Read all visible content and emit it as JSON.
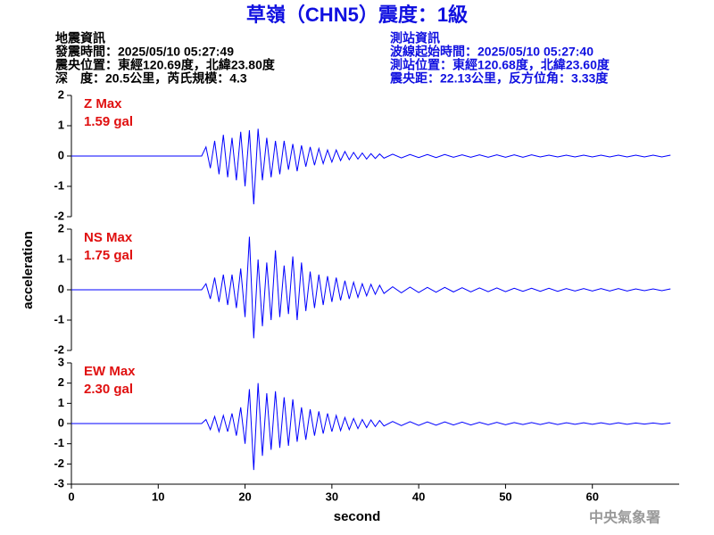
{
  "title": "草嶺（CHN5）震度：1級",
  "event_info": [
    "地震資訊",
    "發震時間：2025/05/10 05:27:49",
    "震央位置：東經120.69度，北緯23.80度",
    "深　度：20.5公里，芮氏規模：4.3"
  ],
  "station_info": [
    "測站資訊",
    "波線起始時間：2025/05/10 05:27:40",
    "測站位置：東經120.68度，北緯23.60度",
    "震央距：22.13公里，反方位角：3.33度"
  ],
  "y_label": "acceleration",
  "x_label": "second",
  "agency": "中央氣象署",
  "chart_data": [
    {
      "type": "line",
      "label": "Z Max",
      "max_label": "1.59 gal",
      "color": "#0000ff",
      "xlim": [
        0,
        70
      ],
      "ylim": [
        -2,
        2
      ],
      "yticks": [
        2,
        1,
        0,
        -1,
        -2
      ],
      "x": [
        0,
        15,
        15.5,
        16,
        16.5,
        17,
        17.5,
        18,
        18.5,
        19,
        19.5,
        20,
        20.5,
        21,
        21.5,
        22,
        22.5,
        23,
        23.5,
        24,
        24.5,
        25,
        25.5,
        26,
        26.5,
        27,
        27.5,
        28,
        28.5,
        29,
        29.5,
        30,
        30.5,
        31,
        31.5,
        32,
        32.5,
        33,
        33.5,
        34,
        34.5,
        35,
        35.5,
        36,
        37,
        38,
        39,
        40,
        41,
        42,
        43,
        44,
        45,
        46,
        47,
        48,
        49,
        50,
        51,
        52,
        53,
        54,
        55,
        56,
        57,
        58,
        59,
        60,
        61,
        62,
        63,
        64,
        65,
        66,
        67,
        68,
        69
      ],
      "values": [
        0,
        0,
        0.3,
        -0.4,
        0.5,
        -0.6,
        0.7,
        -0.7,
        0.6,
        -0.8,
        0.8,
        -1.0,
        0.85,
        -1.59,
        0.9,
        -0.8,
        0.6,
        -0.7,
        0.5,
        -0.6,
        0.5,
        -0.45,
        0.4,
        -0.5,
        0.35,
        -0.35,
        0.3,
        -0.3,
        0.25,
        -0.25,
        0.2,
        -0.2,
        0.2,
        -0.15,
        0.15,
        -0.12,
        0.12,
        -0.1,
        0.1,
        -0.1,
        0.08,
        -0.08,
        0.07,
        -0.07,
        0.06,
        -0.06,
        0.05,
        -0.05,
        0.05,
        -0.05,
        0.05,
        -0.04,
        0.04,
        -0.04,
        0.04,
        -0.04,
        0.04,
        -0.04,
        0.04,
        -0.04,
        0.04,
        -0.03,
        0.03,
        -0.03,
        0.03,
        -0.03,
        0.03,
        -0.03,
        0.03,
        -0.03,
        0.03,
        -0.03,
        0.03,
        -0.03,
        0.03,
        -0.03,
        0.03
      ]
    },
    {
      "type": "line",
      "label": "NS Max",
      "max_label": "1.75 gal",
      "color": "#0000ff",
      "xlim": [
        0,
        70
      ],
      "ylim": [
        -2,
        2
      ],
      "yticks": [
        2,
        1,
        0,
        -1,
        -2
      ],
      "x": [
        0,
        15,
        15.5,
        16,
        16.5,
        17,
        17.5,
        18,
        18.5,
        19,
        19.5,
        20,
        20.5,
        21,
        21.5,
        22,
        22.5,
        23,
        23.5,
        24,
        24.5,
        25,
        25.5,
        26,
        26.5,
        27,
        27.5,
        28,
        28.5,
        29,
        29.5,
        30,
        30.5,
        31,
        31.5,
        32,
        32.5,
        33,
        33.5,
        34,
        34.5,
        35,
        35.5,
        36,
        37,
        38,
        39,
        40,
        41,
        42,
        43,
        44,
        45,
        46,
        47,
        48,
        49,
        50,
        51,
        52,
        53,
        54,
        55,
        56,
        57,
        58,
        59,
        60,
        61,
        62,
        63,
        64,
        65,
        66,
        67,
        68,
        69
      ],
      "values": [
        0,
        0,
        0.2,
        -0.3,
        0.4,
        -0.4,
        0.5,
        -0.5,
        0.5,
        -0.6,
        0.7,
        -0.9,
        1.75,
        -1.6,
        1.0,
        -1.2,
        0.9,
        -1.0,
        1.3,
        -0.9,
        0.8,
        -0.8,
        1.1,
        -1.0,
        0.9,
        -0.7,
        0.6,
        -0.6,
        0.5,
        -0.5,
        0.45,
        -0.4,
        0.4,
        -0.35,
        0.3,
        -0.3,
        0.25,
        -0.25,
        0.2,
        -0.2,
        0.18,
        -0.15,
        0.15,
        -0.12,
        0.1,
        -0.1,
        0.09,
        -0.09,
        0.08,
        -0.08,
        0.08,
        -0.07,
        0.07,
        -0.07,
        0.06,
        -0.06,
        0.06,
        -0.06,
        0.05,
        -0.05,
        0.05,
        -0.05,
        0.05,
        -0.05,
        0.04,
        -0.04,
        0.04,
        -0.04,
        0.04,
        -0.04,
        0.04,
        -0.04,
        0.03,
        -0.03,
        0.03,
        -0.03,
        0.03
      ]
    },
    {
      "type": "line",
      "label": "EW Max",
      "max_label": "2.30 gal",
      "color": "#0000ff",
      "xlim": [
        0,
        70
      ],
      "ylim": [
        -3,
        3
      ],
      "yticks": [
        3,
        2,
        1,
        0,
        -1,
        -2,
        -3
      ],
      "xticks": [
        0,
        10,
        20,
        30,
        40,
        50,
        60
      ],
      "x": [
        0,
        15,
        15.5,
        16,
        16.5,
        17,
        17.5,
        18,
        18.5,
        19,
        19.5,
        20,
        20.5,
        21,
        21.5,
        22,
        22.5,
        23,
        23.5,
        24,
        24.5,
        25,
        25.5,
        26,
        26.5,
        27,
        27.5,
        28,
        28.5,
        29,
        29.5,
        30,
        30.5,
        31,
        31.5,
        32,
        32.5,
        33,
        33.5,
        34,
        34.5,
        35,
        35.5,
        36,
        37,
        38,
        39,
        40,
        41,
        42,
        43,
        44,
        45,
        46,
        47,
        48,
        49,
        50,
        51,
        52,
        53,
        54,
        55,
        56,
        57,
        58,
        59,
        60,
        61,
        62,
        63,
        64,
        65,
        66,
        67,
        68,
        69
      ],
      "values": [
        0,
        0,
        0.2,
        -0.3,
        0.35,
        -0.4,
        0.4,
        -0.4,
        0.5,
        -0.6,
        0.8,
        -1.0,
        1.7,
        -2.3,
        2.0,
        -1.6,
        1.5,
        -1.3,
        1.6,
        -1.2,
        1.3,
        -1.1,
        1.2,
        -0.9,
        0.8,
        -0.8,
        0.7,
        -0.6,
        0.6,
        -0.5,
        0.5,
        -0.4,
        0.4,
        -0.35,
        0.3,
        -0.3,
        0.25,
        -0.25,
        0.2,
        -0.2,
        0.18,
        -0.15,
        0.15,
        -0.12,
        0.1,
        -0.1,
        0.09,
        -0.09,
        0.08,
        -0.08,
        0.08,
        -0.07,
        0.07,
        -0.07,
        0.06,
        -0.06,
        0.06,
        -0.06,
        0.05,
        -0.05,
        0.05,
        -0.05,
        0.05,
        -0.05,
        0.04,
        -0.04,
        0.04,
        -0.04,
        0.04,
        -0.04,
        0.04,
        -0.04,
        0.03,
        -0.03,
        0.03,
        -0.03,
        0.03
      ]
    }
  ]
}
